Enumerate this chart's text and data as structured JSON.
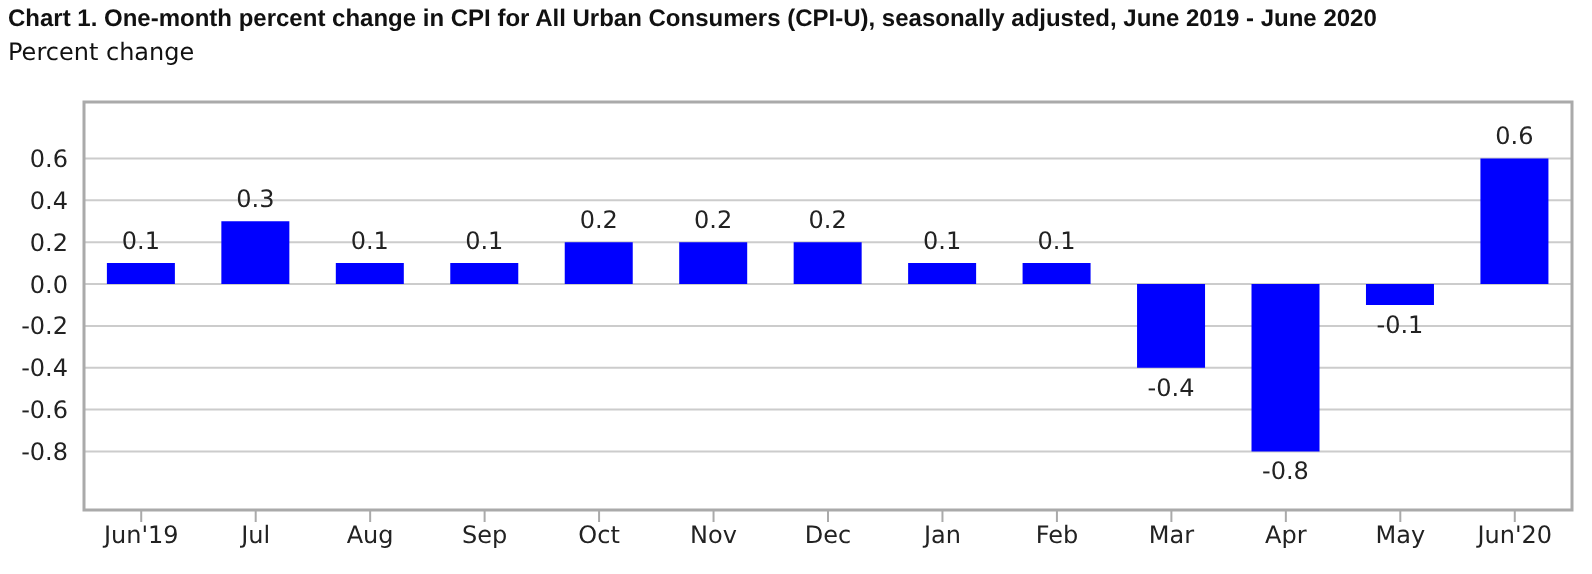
{
  "chart_data": {
    "type": "bar",
    "title": "Chart 1. One-month percent change in CPI for All Urban Consumers (CPI-U), seasonally adjusted, June 2019 - June 2020",
    "ylabel": "Percent change",
    "categories": [
      "Jun'19",
      "Jul",
      "Aug",
      "Sep",
      "Oct",
      "Nov",
      "Dec",
      "Jan",
      "Feb",
      "Mar",
      "Apr",
      "May",
      "Jun'20"
    ],
    "values": [
      0.1,
      0.3,
      0.1,
      0.1,
      0.2,
      0.2,
      0.2,
      0.1,
      0.1,
      -0.4,
      -0.8,
      -0.1,
      0.6
    ],
    "color": "#0000ff",
    "ylim": [
      -1.08,
      0.87
    ],
    "yticks": [
      -0.8,
      -0.6,
      -0.4,
      -0.2,
      {
        "value": 0,
        "label": "0.0"
      },
      0.2,
      0.4,
      0.6
    ],
    "grid": "y",
    "data_labels": true,
    "legend": false
  }
}
